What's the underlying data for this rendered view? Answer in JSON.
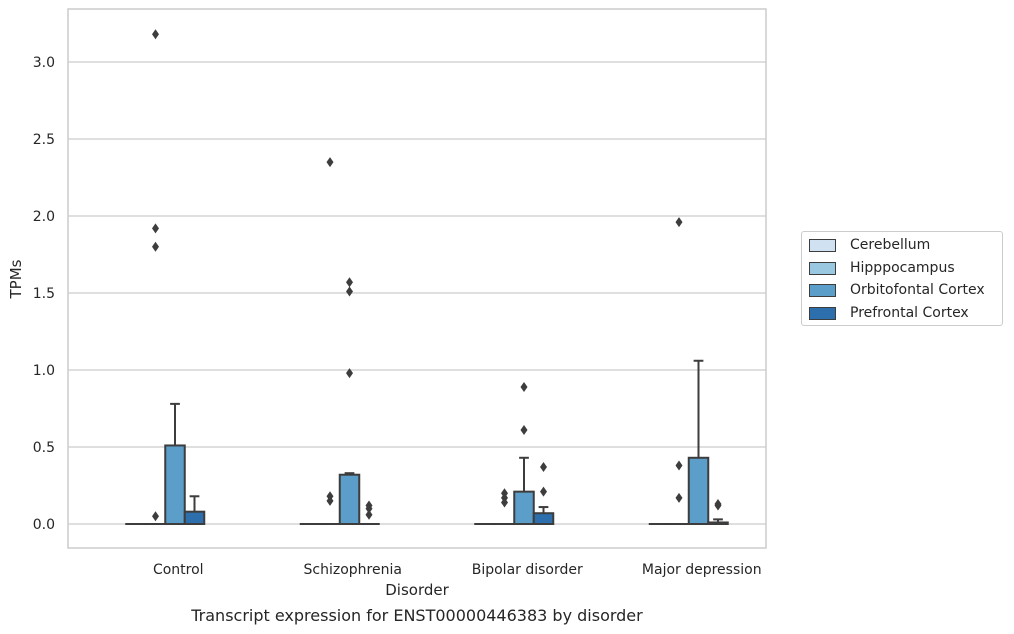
{
  "chart_data": {
    "type": "box",
    "title": "",
    "xlabel": "Disorder",
    "ylabel": "TPMs",
    "caption": "Transcript expression for ENST00000446383 by disorder",
    "ylim": [
      -0.15,
      3.3
    ],
    "yticks": [
      "0.0",
      "0.5",
      "1.0",
      "1.5",
      "2.0",
      "2.5",
      "3.0"
    ],
    "grid": "horizontal",
    "legend_placement": "right",
    "categories": [
      "Control",
      "Schizophrenia",
      "Bipolar disorder",
      "Major depression"
    ],
    "series": [
      {
        "name": "Cerebellum",
        "color": "#d0e1f2",
        "boxes": [
          {
            "q1": 0,
            "median": 0,
            "q3": 0,
            "whisker_low": 0,
            "whisker_high": 0,
            "outliers": []
          },
          {
            "q1": 0,
            "median": 0,
            "q3": 0,
            "whisker_low": 0,
            "whisker_high": 0,
            "outliers": []
          },
          {
            "q1": 0,
            "median": 0,
            "q3": 0,
            "whisker_low": 0,
            "whisker_high": 0,
            "outliers": []
          },
          {
            "q1": 0,
            "median": 0,
            "q3": 0,
            "whisker_low": 0,
            "whisker_high": 0,
            "outliers": []
          }
        ]
      },
      {
        "name": "Hipppocampus",
        "color": "#9ac8e0",
        "boxes": [
          {
            "q1": 0,
            "median": 0,
            "q3": 0,
            "whisker_low": 0,
            "whisker_high": 0,
            "outliers": [
              3.18,
              1.92,
              1.8,
              0.05
            ]
          },
          {
            "q1": 0,
            "median": 0,
            "q3": 0,
            "whisker_low": 0,
            "whisker_high": 0,
            "outliers": [
              2.35,
              0.18,
              0.15
            ]
          },
          {
            "q1": 0,
            "median": 0,
            "q3": 0,
            "whisker_low": 0,
            "whisker_high": 0,
            "outliers": [
              0.2,
              0.17,
              0.14
            ]
          },
          {
            "q1": 0,
            "median": 0,
            "q3": 0,
            "whisker_low": 0,
            "whisker_high": 0,
            "outliers": [
              1.96,
              0.38,
              0.17
            ]
          }
        ]
      },
      {
        "name": "Orbitofontal Cortex",
        "color": "#5b9ec9",
        "boxes": [
          {
            "q1": 0,
            "median": 0,
            "q3": 0.51,
            "whisker_low": 0,
            "whisker_high": 0.78,
            "outliers": []
          },
          {
            "q1": 0,
            "median": 0,
            "q3": 0.32,
            "whisker_low": 0,
            "whisker_high": 0.33,
            "outliers": [
              1.57,
              1.51,
              0.98
            ]
          },
          {
            "q1": 0,
            "median": 0,
            "q3": 0.21,
            "whisker_low": 0,
            "whisker_high": 0.43,
            "outliers": [
              0.89,
              0.61
            ]
          },
          {
            "q1": 0,
            "median": 0,
            "q3": 0.43,
            "whisker_low": 0,
            "whisker_high": 1.06,
            "outliers": []
          }
        ]
      },
      {
        "name": "Prefrontal Cortex",
        "color": "#2d6fad",
        "boxes": [
          {
            "q1": 0,
            "median": 0,
            "q3": 0.08,
            "whisker_low": 0,
            "whisker_high": 0.18,
            "outliers": []
          },
          {
            "q1": 0,
            "median": 0,
            "q3": 0,
            "whisker_low": 0,
            "whisker_high": 0,
            "outliers": [
              0.12,
              0.1,
              0.06
            ]
          },
          {
            "q1": 0,
            "median": 0,
            "q3": 0.07,
            "whisker_low": 0,
            "whisker_high": 0.11,
            "outliers": [
              0.37,
              0.21
            ]
          },
          {
            "q1": 0,
            "median": 0,
            "q3": 0.01,
            "whisker_low": 0,
            "whisker_high": 0.03,
            "outliers": [
              0.13,
              0.12
            ]
          }
        ]
      }
    ]
  }
}
